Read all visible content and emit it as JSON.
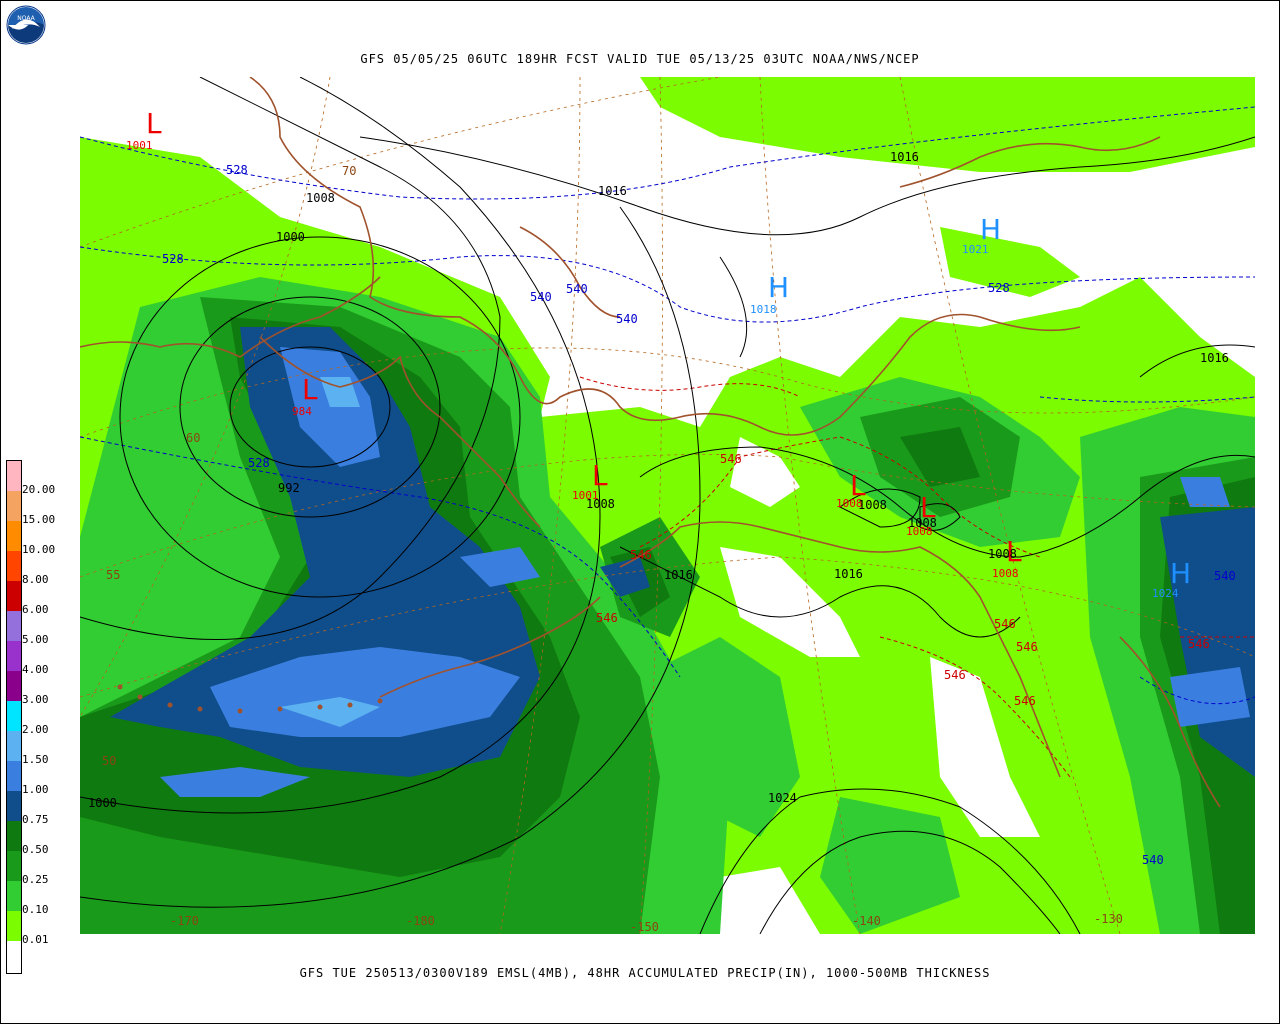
{
  "header": {
    "title": "GFS 05/05/25 06UTC 189HR FCST VALID TUE 05/13/25 03UTC NOAA/NWS/NCEP",
    "logo_text": "NOAA"
  },
  "footer": {
    "caption": "GFS TUE 250513/0300V189 EMSL(4MB), 48HR ACCUMULATED PRECIP(IN), 1000-500MB THICKNESS"
  },
  "colors": {
    "land_lowprecip": "#7cfc00",
    "precip_010": "#32cd32",
    "precip_025": "#22b322",
    "precip_050": "#1a9a1a",
    "precip_075": "#0f7a0f",
    "precip_100": "#104e8b",
    "precip_150": "#3a7fe0",
    "precip_200": "#5cb2f0",
    "coast": "#a0522d",
    "high": "#1e90ff",
    "low": "#ee0000",
    "thickness_cold": "#0000cd",
    "thickness_warm": "#cc0000",
    "isobar": "#000000"
  },
  "legend": {
    "items": [
      {
        "label": "20.00",
        "color": "#ffb6c1"
      },
      {
        "label": "15.00",
        "color": "#f4a460"
      },
      {
        "label": "10.00",
        "color": "#ff8c00"
      },
      {
        "label": "8.00",
        "color": "#ff4500"
      },
      {
        "label": "6.00",
        "color": "#cc0000"
      },
      {
        "label": "5.00",
        "color": "#9370db"
      },
      {
        "label": "4.00",
        "color": "#9932cc"
      },
      {
        "label": "3.00",
        "color": "#8b008b"
      },
      {
        "label": "2.00",
        "color": "#00e5ff"
      },
      {
        "label": "1.50",
        "color": "#5cb2f0"
      },
      {
        "label": "1.00",
        "color": "#3a7fe0"
      },
      {
        "label": "0.75",
        "color": "#104e8b"
      },
      {
        "label": "0.50",
        "color": "#0f7a0f"
      },
      {
        "label": "0.25",
        "color": "#1a9a1a"
      },
      {
        "label": "0.10",
        "color": "#32cd32"
      },
      {
        "label": "0.01",
        "color": "#7cfc00"
      }
    ],
    "bottom_color": "#ffffff"
  },
  "pressure_centers": [
    {
      "type": "L",
      "value": "1001"
    },
    {
      "type": "L",
      "value": "984"
    },
    {
      "type": "L",
      "value": "1001"
    },
    {
      "type": "L",
      "value": "1008"
    },
    {
      "type": "L",
      "value": "1008"
    },
    {
      "type": "L",
      "value": "1008"
    },
    {
      "type": "H",
      "value": "1018"
    },
    {
      "type": "H",
      "value": "1021"
    },
    {
      "type": "H",
      "value": "1024"
    }
  ],
  "isobar_labels": [
    "1008",
    "1000",
    "1016",
    "1016",
    "1016",
    "992",
    "1008",
    "1016",
    "1008",
    "1008",
    "1016",
    "1000",
    "1024",
    "1008"
  ],
  "thickness_labels_cold": [
    "528",
    "528",
    "540",
    "540",
    "540",
    "528",
    "528",
    "540",
    "540"
  ],
  "thickness_labels_warm": [
    "546",
    "546",
    "546",
    "546",
    "546",
    "546",
    "546",
    "546"
  ],
  "lat_labels": [
    "70",
    "60",
    "55",
    "50"
  ],
  "lon_labels": [
    "-170",
    "-180",
    "-150",
    "-140",
    "-130"
  ]
}
